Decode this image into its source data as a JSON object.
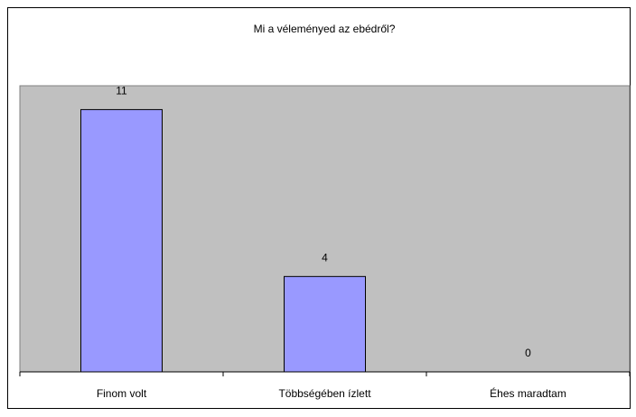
{
  "chart_data": {
    "type": "bar",
    "title": "Mi a véleményed az ebédről?",
    "categories": [
      "Finom volt",
      "Többségében ízlett",
      "Éhes maradtam"
    ],
    "values": [
      11,
      4,
      0
    ],
    "color": "#9999ff",
    "ylim": [
      0,
      12
    ]
  }
}
